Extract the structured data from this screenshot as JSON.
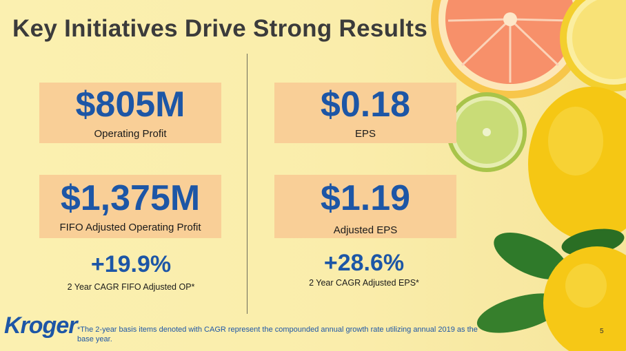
{
  "slide": {
    "title": "Key Initiatives Drive Strong Results",
    "cards": [
      {
        "value": "$805M",
        "label": "Operating Profit"
      },
      {
        "value": "$1,375M",
        "label": "FIFO Adjusted Operating Profit"
      },
      {
        "value": "$0.18",
        "label": "EPS"
      },
      {
        "value": "$1.19",
        "label": "Adjusted EPS"
      }
    ],
    "growth": [
      {
        "value": "+19.9%",
        "label": "2 Year CAGR FIFO Adjusted OP*"
      },
      {
        "value": "+28.6%",
        "label": "2 Year CAGR Adjusted EPS*"
      }
    ],
    "logo": "Kroger",
    "footnote": "*The 2-year basis items denoted with CAGR represent the compounded annual growth rate utilizing annual 2019 as the base year.",
    "page_number": "5"
  },
  "colors": {
    "accent_blue": "#1d56a6",
    "card_fill": "#f9cf97",
    "background": "#fbeeaa"
  }
}
